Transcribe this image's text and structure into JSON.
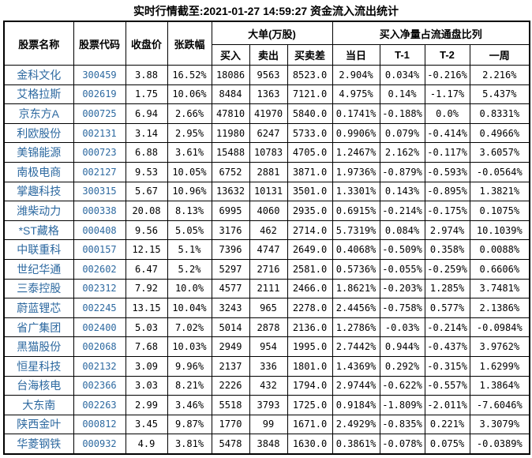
{
  "title": "实时行情截至:2021-01-27 14:59:27 资金流入流出统计",
  "colors": {
    "link_blue": "#2D69A0",
    "border": "#000000",
    "text": "#000000",
    "background": "#FFFFFF"
  },
  "table": {
    "group_headers": {
      "big_orders": "大单(万股)",
      "net_buy_ratio": "买入净量占流通盘比列"
    },
    "col_headers": {
      "name": "股票名称",
      "code": "股票代码",
      "close": "收盘价",
      "change": "张跌幅",
      "buy": "买入",
      "sell": "卖出",
      "diff": "买卖差",
      "today": "当日",
      "t1": "T-1",
      "t2": "T-2",
      "week": "一周"
    },
    "rows": [
      [
        "金科文化",
        "300459",
        "3.88",
        "16.52%",
        "18086",
        "9563",
        "8523.0",
        "2.904%",
        "0.034%",
        "-0.216%",
        "2.216%"
      ],
      [
        "艾格拉斯",
        "002619",
        "1.75",
        "10.06%",
        "8484",
        "1363",
        "7121.0",
        "4.975%",
        "0.14%",
        "-1.17%",
        "5.437%"
      ],
      [
        "京东方A",
        "000725",
        "6.94",
        "2.66%",
        "47810",
        "41970",
        "5840.0",
        "0.1741%",
        "-0.188%",
        "0.0%",
        "0.8331%"
      ],
      [
        "利欧股份",
        "002131",
        "3.14",
        "2.95%",
        "11980",
        "6247",
        "5733.0",
        "0.9906%",
        "0.079%",
        "-0.414%",
        "0.4966%"
      ],
      [
        "美锦能源",
        "000723",
        "6.88",
        "3.61%",
        "15488",
        "10783",
        "4705.0",
        "1.2467%",
        "2.162%",
        "-0.117%",
        "3.6057%"
      ],
      [
        "南极电商",
        "002127",
        "9.53",
        "10.05%",
        "6752",
        "2881",
        "3871.0",
        "1.9736%",
        "-0.879%",
        "-0.593%",
        "-0.0564%"
      ],
      [
        "掌趣科技",
        "300315",
        "5.67",
        "10.96%",
        "13632",
        "10131",
        "3501.0",
        "1.3301%",
        "0.143%",
        "-0.895%",
        "1.3821%"
      ],
      [
        "潍柴动力",
        "000338",
        "20.08",
        "8.13%",
        "6995",
        "4060",
        "2935.0",
        "0.6915%",
        "-0.214%",
        "-0.175%",
        "0.1075%"
      ],
      [
        "*ST藏格",
        "000408",
        "9.56",
        "5.05%",
        "3176",
        "462",
        "2714.0",
        "5.7319%",
        "0.084%",
        "2.974%",
        "10.1039%"
      ],
      [
        "中联重科",
        "000157",
        "12.15",
        "5.1%",
        "7396",
        "4747",
        "2649.0",
        "0.4068%",
        "-0.509%",
        "0.358%",
        "0.0088%"
      ],
      [
        "世纪华通",
        "002602",
        "6.47",
        "5.2%",
        "5297",
        "2716",
        "2581.0",
        "0.5736%",
        "-0.055%",
        "-0.259%",
        "0.6606%"
      ],
      [
        "三泰控股",
        "002312",
        "7.92",
        "10.0%",
        "4577",
        "2111",
        "2466.0",
        "1.8621%",
        "-0.203%",
        "1.285%",
        "3.7481%"
      ],
      [
        "蔚蓝锂芯",
        "002245",
        "13.15",
        "10.04%",
        "3243",
        "965",
        "2278.0",
        "2.4456%",
        "-0.758%",
        "0.577%",
        "2.1386%"
      ],
      [
        "省广集团",
        "002400",
        "5.03",
        "7.02%",
        "5014",
        "2878",
        "2136.0",
        "1.2786%",
        "-0.03%",
        "-0.214%",
        "-0.0984%"
      ],
      [
        "黑猫股份",
        "002068",
        "7.68",
        "10.03%",
        "2949",
        "954",
        "1995.0",
        "2.7442%",
        "0.944%",
        "-0.437%",
        "3.9762%"
      ],
      [
        "恒星科技",
        "002132",
        "3.09",
        "9.96%",
        "2137",
        "336",
        "1801.0",
        "1.4369%",
        "0.292%",
        "-0.315%",
        "1.6299%"
      ],
      [
        "台海核电",
        "002366",
        "3.03",
        "8.21%",
        "2226",
        "432",
        "1794.0",
        "2.9744%",
        "-0.622%",
        "-0.557%",
        "1.3864%"
      ],
      [
        "大东南",
        "002263",
        "2.99",
        "3.46%",
        "5518",
        "3793",
        "1725.0",
        "0.9184%",
        "-1.809%",
        "-2.011%",
        "-7.6046%"
      ],
      [
        "陕西金叶",
        "000812",
        "3.45",
        "9.87%",
        "1770",
        "99",
        "1671.0",
        "2.4929%",
        "-0.835%",
        "0.221%",
        "3.3079%"
      ],
      [
        "华菱钢铁",
        "000932",
        "4.9",
        "3.81%",
        "5478",
        "3848",
        "1630.0",
        "0.3861%",
        "-0.078%",
        "0.075%",
        "-0.0389%"
      ]
    ]
  }
}
